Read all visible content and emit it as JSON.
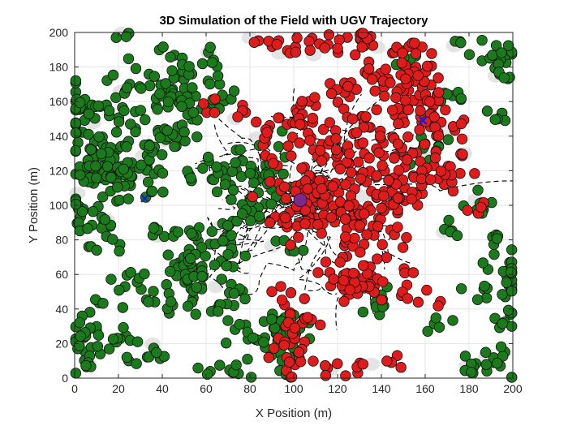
{
  "chart_data": {
    "type": "scatter",
    "title": "3D Simulation of the Field with UGV Trajectory",
    "xlabel": "X Position (m)",
    "ylabel": "Y Position (m)",
    "xlim": [
      0,
      200
    ],
    "ylim": [
      0,
      200
    ],
    "grid": true,
    "xticks": [
      "0",
      "20",
      "40",
      "60",
      "80",
      "100",
      "120",
      "140",
      "160",
      "180",
      "200"
    ],
    "yticks": [
      "0",
      "20",
      "40",
      "60",
      "80",
      "100",
      "120",
      "140",
      "160",
      "180",
      "200"
    ],
    "colors": {
      "healthy": "#1b7a1b",
      "infected": "#e01b1b",
      "trajectory": "#000000",
      "waypoint": "#1a1adb",
      "ugv": "#7a2a8a",
      "shadow": "#d9d9d9"
    },
    "series": [
      {
        "marker": "circle",
        "color": "#1b7a1b",
        "clusters": [
          [
            5,
            155,
            9,
            9
          ],
          [
            12,
            130,
            7,
            8
          ],
          [
            6,
            100,
            5,
            7
          ],
          [
            12,
            120,
            9,
            7
          ],
          [
            25,
            120,
            10,
            10
          ],
          [
            14,
            90,
            4,
            5
          ],
          [
            14,
            75,
            4,
            4
          ],
          [
            20,
            165,
            3,
            4
          ],
          [
            27,
            150,
            4,
            3
          ],
          [
            33,
            130,
            3,
            3
          ],
          [
            40,
            165,
            9,
            10
          ],
          [
            38,
            140,
            6,
            5
          ],
          [
            48,
            160,
            5,
            9
          ],
          [
            45,
            185,
            5,
            4
          ],
          [
            40,
            85,
            5,
            4
          ],
          [
            50,
            62,
            5,
            4
          ],
          [
            45,
            45,
            6,
            6
          ],
          [
            25,
            55,
            5,
            4
          ],
          [
            10,
            25,
            8,
            10
          ],
          [
            5,
            5,
            3,
            3
          ],
          [
            33,
            15,
            5,
            5
          ],
          [
            60,
            65,
            8,
            12
          ],
          [
            70,
            45,
            5,
            5
          ],
          [
            70,
            85,
            4,
            5
          ],
          [
            68,
            115,
            6,
            6
          ],
          [
            85,
            115,
            7,
            12
          ],
          [
            80,
            95,
            5,
            4
          ],
          [
            85,
            25,
            8,
            6
          ],
          [
            97,
            20,
            6,
            10
          ],
          [
            60,
            5,
            3,
            3
          ],
          [
            75,
            5,
            4,
            4
          ],
          [
            62,
            180,
            3,
            8
          ],
          [
            70,
            160,
            4,
            3
          ],
          [
            95,
            75,
            4,
            3
          ],
          [
            55,
            120,
            3,
            3
          ],
          [
            20,
            198,
            5,
            2
          ],
          [
            160,
            130,
            5,
            5
          ],
          [
            155,
            185,
            4,
            4
          ],
          [
            170,
            160,
            4,
            4
          ],
          [
            178,
            195,
            4,
            3
          ],
          [
            195,
            185,
            5,
            8
          ],
          [
            195,
            155,
            3,
            4
          ],
          [
            170,
            85,
            4,
            3
          ],
          [
            185,
            100,
            5,
            4
          ],
          [
            195,
            60,
            8,
            10
          ],
          [
            190,
            10,
            6,
            5
          ],
          [
            180,
            5,
            3,
            3
          ],
          [
            168,
            30,
            4,
            3
          ],
          [
            198,
            30,
            3,
            5
          ],
          [
            138,
            45,
            5,
            4
          ],
          [
            130,
            55,
            3,
            3
          ]
        ]
      },
      {
        "marker": "circle",
        "color": "#e01b1b",
        "clusters": [
          [
            85,
            195,
            4,
            3
          ],
          [
            97,
            190,
            4,
            3
          ],
          [
            110,
            192,
            4,
            4
          ],
          [
            120,
            195,
            4,
            4
          ],
          [
            135,
            195,
            5,
            4
          ],
          [
            150,
            190,
            5,
            3
          ],
          [
            122,
            165,
            4,
            5
          ],
          [
            128,
            150,
            4,
            5
          ],
          [
            140,
            175,
            5,
            5
          ],
          [
            150,
            160,
            10,
            15
          ],
          [
            155,
            175,
            5,
            5
          ],
          [
            105,
            155,
            5,
            4
          ],
          [
            75,
            150,
            3,
            3
          ],
          [
            95,
            150,
            5,
            6
          ],
          [
            115,
            135,
            10,
            8
          ],
          [
            145,
            130,
            5,
            5
          ],
          [
            155,
            120,
            8,
            7
          ],
          [
            170,
            120,
            5,
            5
          ],
          [
            130,
            120,
            4,
            4
          ],
          [
            104,
            110,
            6,
            5
          ],
          [
            110,
            100,
            12,
            10
          ],
          [
            130,
            100,
            10,
            8
          ],
          [
            140,
            95,
            6,
            6
          ],
          [
            150,
            100,
            4,
            4
          ],
          [
            100,
            95,
            5,
            5
          ],
          [
            128,
            80,
            4,
            4
          ],
          [
            135,
            60,
            12,
            8
          ],
          [
            120,
            55,
            5,
            5
          ],
          [
            145,
            110,
            3,
            3
          ],
          [
            170,
            145,
            5,
            5
          ],
          [
            175,
            130,
            3,
            3
          ],
          [
            180,
            100,
            3,
            3
          ],
          [
            95,
            45,
            4,
            4
          ],
          [
            100,
            20,
            6,
            12
          ],
          [
            115,
            5,
            3,
            3
          ],
          [
            130,
            5,
            4,
            3
          ],
          [
            145,
            10,
            3,
            3
          ],
          [
            85,
            140,
            3,
            4
          ],
          [
            165,
            45,
            3,
            3
          ],
          [
            90,
            125,
            2,
            2
          ],
          [
            160,
            155,
            4,
            4
          ],
          [
            60,
            155,
            3,
            3
          ]
        ]
      }
    ],
    "trajectory": {
      "color": "#000000",
      "style": "dashed"
    },
    "points": [
      {
        "marker": "x",
        "color": "#1a1adb",
        "x": 32,
        "y": 104
      },
      {
        "marker": "x",
        "color": "#1a1adb",
        "x": 159,
        "y": 149
      },
      {
        "marker": "circle",
        "color": "#7a2a8a",
        "x": 103,
        "y": 103
      }
    ]
  }
}
